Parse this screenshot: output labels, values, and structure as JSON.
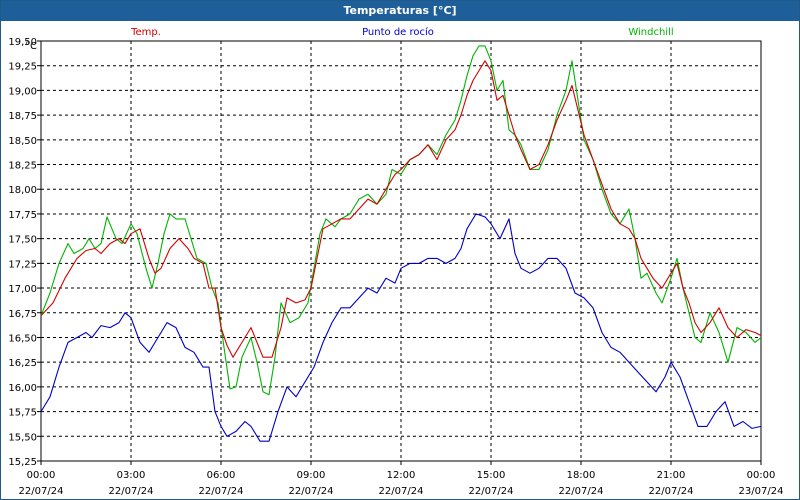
{
  "window": {
    "title": "Temperaturas [°C]"
  },
  "colors": {
    "temp": "#d40000",
    "dew": "#0000c8",
    "windchill": "#00b400",
    "grid": "#000000",
    "titlebar": "#1f5f99"
  },
  "chart_data": {
    "type": "line",
    "title": "Temperaturas [°C]",
    "ylabel": "°C",
    "ylim": [
      15.25,
      19.5
    ],
    "yticks": [
      "15,25",
      "15,50",
      "15,75",
      "16,00",
      "16,25",
      "16,50",
      "16,75",
      "17,00",
      "17,25",
      "17,50",
      "17,75",
      "18,00",
      "18,25",
      "18,50",
      "18,75",
      "19,00",
      "19,25",
      "19,50"
    ],
    "ytick_values": [
      15.25,
      15.5,
      15.75,
      16.0,
      16.25,
      16.5,
      16.75,
      17.0,
      17.25,
      17.5,
      17.75,
      18.0,
      18.25,
      18.5,
      18.75,
      19.0,
      19.25,
      19.5
    ],
    "xlim": [
      0,
      24
    ],
    "xticks": [
      {
        "time": "00:00",
        "date": "22/07/24"
      },
      {
        "time": "03:00",
        "date": "22/07/24"
      },
      {
        "time": "06:00",
        "date": "22/07/24"
      },
      {
        "time": "09:00",
        "date": "22/07/24"
      },
      {
        "time": "12:00",
        "date": "22/07/24"
      },
      {
        "time": "15:00",
        "date": "22/07/24"
      },
      {
        "time": "18:00",
        "date": "22/07/24"
      },
      {
        "time": "21:00",
        "date": "22/07/24"
      },
      {
        "time": "00:00",
        "date": "23/07/24"
      }
    ],
    "grid": true,
    "series": [
      {
        "name": "Temp.",
        "color": "#d40000",
        "points": [
          [
            0,
            16.72
          ],
          [
            0.4,
            16.85
          ],
          [
            0.8,
            17.1
          ],
          [
            1.2,
            17.3
          ],
          [
            1.5,
            17.38
          ],
          [
            1.8,
            17.4
          ],
          [
            2.0,
            17.35
          ],
          [
            2.3,
            17.45
          ],
          [
            2.6,
            17.5
          ],
          [
            2.8,
            17.45
          ],
          [
            3.0,
            17.55
          ],
          [
            3.3,
            17.6
          ],
          [
            3.6,
            17.3
          ],
          [
            3.8,
            17.15
          ],
          [
            4.0,
            17.2
          ],
          [
            4.3,
            17.4
          ],
          [
            4.6,
            17.5
          ],
          [
            4.9,
            17.4
          ],
          [
            5.1,
            17.3
          ],
          [
            5.4,
            17.25
          ],
          [
            5.6,
            17.0
          ],
          [
            5.8,
            17.0
          ],
          [
            6.0,
            16.6
          ],
          [
            6.2,
            16.42
          ],
          [
            6.4,
            16.3
          ],
          [
            6.7,
            16.45
          ],
          [
            7.0,
            16.6
          ],
          [
            7.2,
            16.45
          ],
          [
            7.4,
            16.3
          ],
          [
            7.7,
            16.3
          ],
          [
            8.0,
            16.6
          ],
          [
            8.2,
            16.9
          ],
          [
            8.5,
            16.85
          ],
          [
            8.8,
            16.88
          ],
          [
            9.0,
            17.0
          ],
          [
            9.2,
            17.3
          ],
          [
            9.4,
            17.6
          ],
          [
            9.7,
            17.65
          ],
          [
            10.0,
            17.7
          ],
          [
            10.3,
            17.7
          ],
          [
            10.6,
            17.8
          ],
          [
            10.9,
            17.9
          ],
          [
            11.2,
            17.85
          ],
          [
            11.5,
            18.0
          ],
          [
            11.8,
            18.15
          ],
          [
            12.0,
            18.2
          ],
          [
            12.3,
            18.3
          ],
          [
            12.6,
            18.35
          ],
          [
            12.9,
            18.45
          ],
          [
            13.2,
            18.3
          ],
          [
            13.5,
            18.5
          ],
          [
            13.8,
            18.6
          ],
          [
            14.0,
            18.75
          ],
          [
            14.2,
            18.95
          ],
          [
            14.4,
            19.1
          ],
          [
            14.6,
            19.2
          ],
          [
            14.8,
            19.3
          ],
          [
            15.0,
            19.2
          ],
          [
            15.2,
            18.9
          ],
          [
            15.4,
            18.95
          ],
          [
            15.6,
            18.75
          ],
          [
            15.8,
            18.55
          ],
          [
            16.0,
            18.4
          ],
          [
            16.3,
            18.2
          ],
          [
            16.6,
            18.25
          ],
          [
            16.9,
            18.45
          ],
          [
            17.2,
            18.7
          ],
          [
            17.5,
            18.9
          ],
          [
            17.7,
            19.05
          ],
          [
            17.9,
            18.8
          ],
          [
            18.1,
            18.55
          ],
          [
            18.4,
            18.3
          ],
          [
            18.7,
            18.05
          ],
          [
            19.0,
            17.8
          ],
          [
            19.3,
            17.65
          ],
          [
            19.6,
            17.6
          ],
          [
            19.8,
            17.5
          ],
          [
            20.0,
            17.3
          ],
          [
            20.2,
            17.2
          ],
          [
            20.4,
            17.1
          ],
          [
            20.7,
            17.0
          ],
          [
            21.0,
            17.15
          ],
          [
            21.2,
            17.25
          ],
          [
            21.4,
            17.0
          ],
          [
            21.6,
            16.85
          ],
          [
            21.8,
            16.65
          ],
          [
            22.0,
            16.55
          ],
          [
            22.3,
            16.65
          ],
          [
            22.6,
            16.8
          ],
          [
            22.9,
            16.6
          ],
          [
            23.2,
            16.5
          ],
          [
            23.5,
            16.58
          ],
          [
            23.8,
            16.55
          ],
          [
            24.0,
            16.52
          ]
        ]
      },
      {
        "name": "Punto de rocío",
        "color": "#0000c8",
        "points": [
          [
            0,
            15.75
          ],
          [
            0.3,
            15.9
          ],
          [
            0.6,
            16.2
          ],
          [
            0.9,
            16.45
          ],
          [
            1.2,
            16.5
          ],
          [
            1.5,
            16.55
          ],
          [
            1.7,
            16.5
          ],
          [
            2.0,
            16.62
          ],
          [
            2.3,
            16.6
          ],
          [
            2.6,
            16.65
          ],
          [
            2.8,
            16.75
          ],
          [
            3.0,
            16.7
          ],
          [
            3.3,
            16.45
          ],
          [
            3.6,
            16.35
          ],
          [
            3.9,
            16.5
          ],
          [
            4.2,
            16.65
          ],
          [
            4.5,
            16.6
          ],
          [
            4.8,
            16.4
          ],
          [
            5.1,
            16.35
          ],
          [
            5.4,
            16.2
          ],
          [
            5.6,
            16.2
          ],
          [
            5.8,
            15.75
          ],
          [
            6.0,
            15.6
          ],
          [
            6.2,
            15.5
          ],
          [
            6.5,
            15.55
          ],
          [
            6.8,
            15.65
          ],
          [
            7.0,
            15.6
          ],
          [
            7.3,
            15.45
          ],
          [
            7.6,
            15.45
          ],
          [
            7.9,
            15.75
          ],
          [
            8.2,
            16.0
          ],
          [
            8.5,
            15.9
          ],
          [
            8.8,
            16.05
          ],
          [
            9.1,
            16.2
          ],
          [
            9.4,
            16.45
          ],
          [
            9.7,
            16.65
          ],
          [
            10.0,
            16.8
          ],
          [
            10.3,
            16.8
          ],
          [
            10.6,
            16.9
          ],
          [
            10.9,
            17.0
          ],
          [
            11.2,
            16.95
          ],
          [
            11.5,
            17.1
          ],
          [
            11.8,
            17.05
          ],
          [
            12.0,
            17.2
          ],
          [
            12.3,
            17.25
          ],
          [
            12.6,
            17.25
          ],
          [
            12.9,
            17.3
          ],
          [
            13.2,
            17.3
          ],
          [
            13.5,
            17.25
          ],
          [
            13.8,
            17.3
          ],
          [
            14.0,
            17.4
          ],
          [
            14.2,
            17.6
          ],
          [
            14.5,
            17.75
          ],
          [
            14.8,
            17.72
          ],
          [
            15.0,
            17.65
          ],
          [
            15.3,
            17.5
          ],
          [
            15.6,
            17.7
          ],
          [
            15.8,
            17.35
          ],
          [
            16.0,
            17.2
          ],
          [
            16.3,
            17.15
          ],
          [
            16.6,
            17.2
          ],
          [
            16.9,
            17.3
          ],
          [
            17.2,
            17.3
          ],
          [
            17.5,
            17.2
          ],
          [
            17.8,
            16.95
          ],
          [
            18.1,
            16.9
          ],
          [
            18.4,
            16.8
          ],
          [
            18.7,
            16.55
          ],
          [
            19.0,
            16.4
          ],
          [
            19.3,
            16.35
          ],
          [
            19.6,
            16.25
          ],
          [
            19.9,
            16.15
          ],
          [
            20.2,
            16.05
          ],
          [
            20.5,
            15.95
          ],
          [
            20.8,
            16.1
          ],
          [
            21.0,
            16.25
          ],
          [
            21.3,
            16.1
          ],
          [
            21.6,
            15.85
          ],
          [
            21.9,
            15.6
          ],
          [
            22.2,
            15.6
          ],
          [
            22.5,
            15.75
          ],
          [
            22.8,
            15.85
          ],
          [
            23.1,
            15.6
          ],
          [
            23.4,
            15.65
          ],
          [
            23.7,
            15.58
          ],
          [
            24.0,
            15.6
          ]
        ]
      },
      {
        "name": "Windchill",
        "color": "#00b400",
        "points": [
          [
            0,
            16.72
          ],
          [
            0.3,
            16.95
          ],
          [
            0.6,
            17.25
          ],
          [
            0.9,
            17.45
          ],
          [
            1.1,
            17.35
          ],
          [
            1.4,
            17.4
          ],
          [
            1.6,
            17.5
          ],
          [
            1.8,
            17.4
          ],
          [
            2.0,
            17.45
          ],
          [
            2.2,
            17.72
          ],
          [
            2.5,
            17.5
          ],
          [
            2.7,
            17.45
          ],
          [
            3.0,
            17.65
          ],
          [
            3.2,
            17.55
          ],
          [
            3.5,
            17.2
          ],
          [
            3.7,
            17.0
          ],
          [
            3.9,
            17.25
          ],
          [
            4.1,
            17.55
          ],
          [
            4.3,
            17.75
          ],
          [
            4.5,
            17.7
          ],
          [
            4.8,
            17.7
          ],
          [
            5.0,
            17.5
          ],
          [
            5.2,
            17.3
          ],
          [
            5.5,
            17.25
          ],
          [
            5.7,
            17.0
          ],
          [
            5.9,
            16.85
          ],
          [
            6.1,
            16.4
          ],
          [
            6.3,
            15.98
          ],
          [
            6.5,
            16.0
          ],
          [
            6.7,
            16.3
          ],
          [
            7.0,
            16.5
          ],
          [
            7.2,
            16.25
          ],
          [
            7.4,
            15.95
          ],
          [
            7.6,
            15.92
          ],
          [
            7.8,
            16.3
          ],
          [
            8.0,
            16.85
          ],
          [
            8.3,
            16.65
          ],
          [
            8.6,
            16.7
          ],
          [
            8.9,
            16.85
          ],
          [
            9.1,
            17.2
          ],
          [
            9.3,
            17.55
          ],
          [
            9.5,
            17.7
          ],
          [
            9.8,
            17.62
          ],
          [
            10.0,
            17.7
          ],
          [
            10.3,
            17.75
          ],
          [
            10.6,
            17.9
          ],
          [
            10.9,
            17.95
          ],
          [
            11.2,
            17.85
          ],
          [
            11.5,
            17.95
          ],
          [
            11.7,
            18.2
          ],
          [
            12.0,
            18.15
          ],
          [
            12.3,
            18.3
          ],
          [
            12.6,
            18.35
          ],
          [
            12.9,
            18.45
          ],
          [
            13.2,
            18.35
          ],
          [
            13.5,
            18.55
          ],
          [
            13.8,
            18.7
          ],
          [
            14.0,
            18.9
          ],
          [
            14.2,
            19.15
          ],
          [
            14.4,
            19.35
          ],
          [
            14.6,
            19.45
          ],
          [
            14.8,
            19.45
          ],
          [
            15.0,
            19.3
          ],
          [
            15.2,
            19.0
          ],
          [
            15.4,
            19.1
          ],
          [
            15.6,
            18.6
          ],
          [
            15.8,
            18.55
          ],
          [
            16.0,
            18.45
          ],
          [
            16.3,
            18.2
          ],
          [
            16.6,
            18.2
          ],
          [
            16.9,
            18.4
          ],
          [
            17.2,
            18.75
          ],
          [
            17.5,
            19.0
          ],
          [
            17.7,
            19.3
          ],
          [
            17.9,
            18.9
          ],
          [
            18.1,
            18.5
          ],
          [
            18.4,
            18.3
          ],
          [
            18.7,
            18.0
          ],
          [
            19.0,
            17.75
          ],
          [
            19.3,
            17.65
          ],
          [
            19.6,
            17.8
          ],
          [
            19.8,
            17.5
          ],
          [
            20.0,
            17.1
          ],
          [
            20.2,
            17.15
          ],
          [
            20.5,
            16.95
          ],
          [
            20.7,
            16.85
          ],
          [
            21.0,
            17.1
          ],
          [
            21.2,
            17.3
          ],
          [
            21.4,
            17.0
          ],
          [
            21.6,
            16.75
          ],
          [
            21.8,
            16.5
          ],
          [
            22.0,
            16.45
          ],
          [
            22.3,
            16.75
          ],
          [
            22.6,
            16.55
          ],
          [
            22.9,
            16.25
          ],
          [
            23.2,
            16.6
          ],
          [
            23.5,
            16.55
          ],
          [
            23.8,
            16.45
          ],
          [
            24.0,
            16.5
          ]
        ]
      }
    ]
  }
}
